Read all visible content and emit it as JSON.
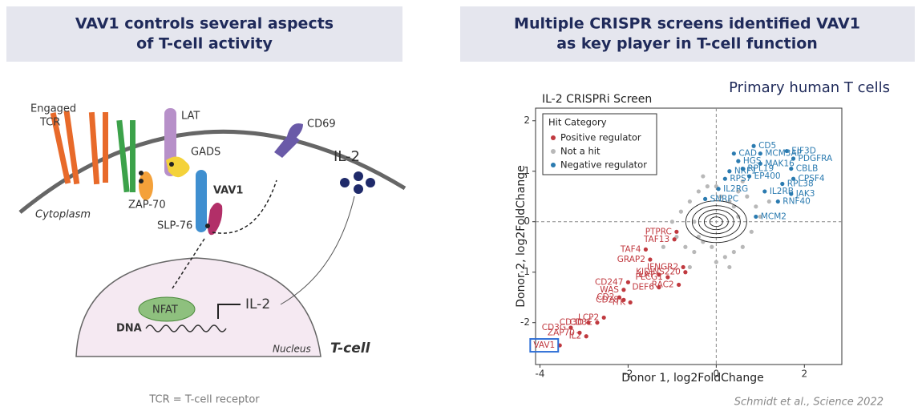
{
  "left_panel": {
    "title_lines": [
      "VAV1 controls several aspects",
      "of T-cell activity"
    ],
    "diagram": {
      "engaged_tcr": [
        "Engaged",
        "TCR"
      ],
      "lat": "LAT",
      "gads": "GADS",
      "cd69": "CD69",
      "il2_out": "IL-2",
      "vav1": "VAV1",
      "zap70": "ZAP-70",
      "slp76": "SLP-76",
      "cytoplasm": "Cytoplasm",
      "nfat": "NFAT",
      "il2_gene": "IL-2",
      "dna": "DNA",
      "nucleus": "Nucleus",
      "cell": "T-cell"
    },
    "footnote": "TCR = T-cell receptor"
  },
  "right_panel": {
    "title_lines": [
      "Multiple CRISPR screens identified VAV1",
      "as key player in T-cell function"
    ],
    "subtitle": "Primary human T cells",
    "citation": "Schmidt et al., Science 2022"
  },
  "chart_data": {
    "type": "scatter",
    "title": "IL-2 CRISPRi Screen",
    "x_label": "Donor 1, log2FoldChange",
    "y_label": "Donor 2, log2FoldChange",
    "legend_title": "Hit Category",
    "legend": "upper-left",
    "zero_lines": true,
    "highlight": "VAV1",
    "xlim": [
      -4.1,
      2.85
    ],
    "ylim": [
      -2.83,
      2.25
    ],
    "xticks": [
      -4,
      -2,
      0,
      2
    ],
    "yticks": [
      -2,
      -1,
      0,
      1,
      2
    ],
    "series": [
      {
        "name": "Not a hit",
        "color": "#b8b8b8",
        "x": [
          -0.9,
          -0.7,
          -0.5,
          -0.3,
          -0.1,
          0.1,
          0.3,
          0.5,
          0.7,
          0.9,
          -0.8,
          -0.6,
          -0.4,
          0.4,
          0.6,
          0.8,
          -0.5,
          -0.2,
          0.2,
          0.5,
          -1.0,
          1.0,
          -0.3,
          0.3,
          0.0,
          -0.6,
          0.6,
          -1.2,
          1.2,
          -0.4,
          0.4,
          0.0
        ],
        "values": [
          -0.3,
          -0.5,
          -0.6,
          -0.4,
          -0.5,
          0.5,
          0.4,
          0.6,
          0.5,
          0.3,
          0.2,
          0.4,
          0.6,
          -0.6,
          -0.5,
          -0.2,
          0.0,
          0.7,
          -0.7,
          0.1,
          0.0,
          0.1,
          0.9,
          -0.9,
          -0.8,
          -0.9,
          0.8,
          -0.5,
          0.4,
          -0.3,
          0.3,
          0.7
        ]
      },
      {
        "name": "Positive regulator",
        "color": "#c0393f",
        "labels": [
          "VAV1",
          "IL2",
          "CD3G",
          "ZAP70",
          "CD3D",
          "CD3E",
          "LCP2",
          "CD2",
          "CD28",
          "ITK",
          "WAS",
          "CD247",
          "LAT",
          "DEF6",
          "PLCG1",
          "RAC2",
          "IFNGR2",
          "KIDINS220",
          "GRAP2",
          "TAF4",
          "TAF13",
          "PTPRC"
        ],
        "x": [
          -3.55,
          -2.95,
          -3.3,
          -3.1,
          -2.9,
          -2.7,
          -2.55,
          -2.2,
          -2.1,
          -1.95,
          -2.1,
          -2.0,
          -1.3,
          -1.3,
          -1.1,
          -0.85,
          -0.75,
          -0.7,
          -1.5,
          -1.6,
          -0.95,
          -0.9
        ],
        "values": [
          -2.45,
          -2.27,
          -2.1,
          -2.2,
          -2.0,
          -2.0,
          -1.9,
          -1.5,
          -1.55,
          -1.6,
          -1.35,
          -1.2,
          -1.05,
          -1.3,
          -1.1,
          -1.25,
          -0.9,
          -1.0,
          -0.75,
          -0.55,
          -0.35,
          -0.2
        ]
      },
      {
        "name": "Negative regulator",
        "color": "#2b7bb0",
        "labels": [
          "CD5",
          "MCM3AP",
          "EIF3D",
          "HGS",
          "CAD",
          "PDGFRA",
          "RPL19",
          "MAK16",
          "CBLB",
          "NRF1",
          "EP400",
          "CPSF4",
          "RPS7",
          "RPL38",
          "IL2RG",
          "IL2RB",
          "JAK3",
          "SNRPC",
          "RNF40",
          "MCM2"
        ],
        "x": [
          0.85,
          1.0,
          1.6,
          0.5,
          0.4,
          1.75,
          0.6,
          1.0,
          1.7,
          0.3,
          0.75,
          1.75,
          0.2,
          1.5,
          0.05,
          1.1,
          1.7,
          -0.25,
          1.4,
          0.9
        ],
        "values": [
          1.5,
          1.35,
          1.4,
          1.2,
          1.35,
          1.25,
          1.05,
          1.15,
          1.05,
          1.0,
          0.9,
          0.85,
          0.85,
          0.75,
          0.65,
          0.6,
          0.55,
          0.45,
          0.4,
          0.1
        ]
      }
    ]
  }
}
